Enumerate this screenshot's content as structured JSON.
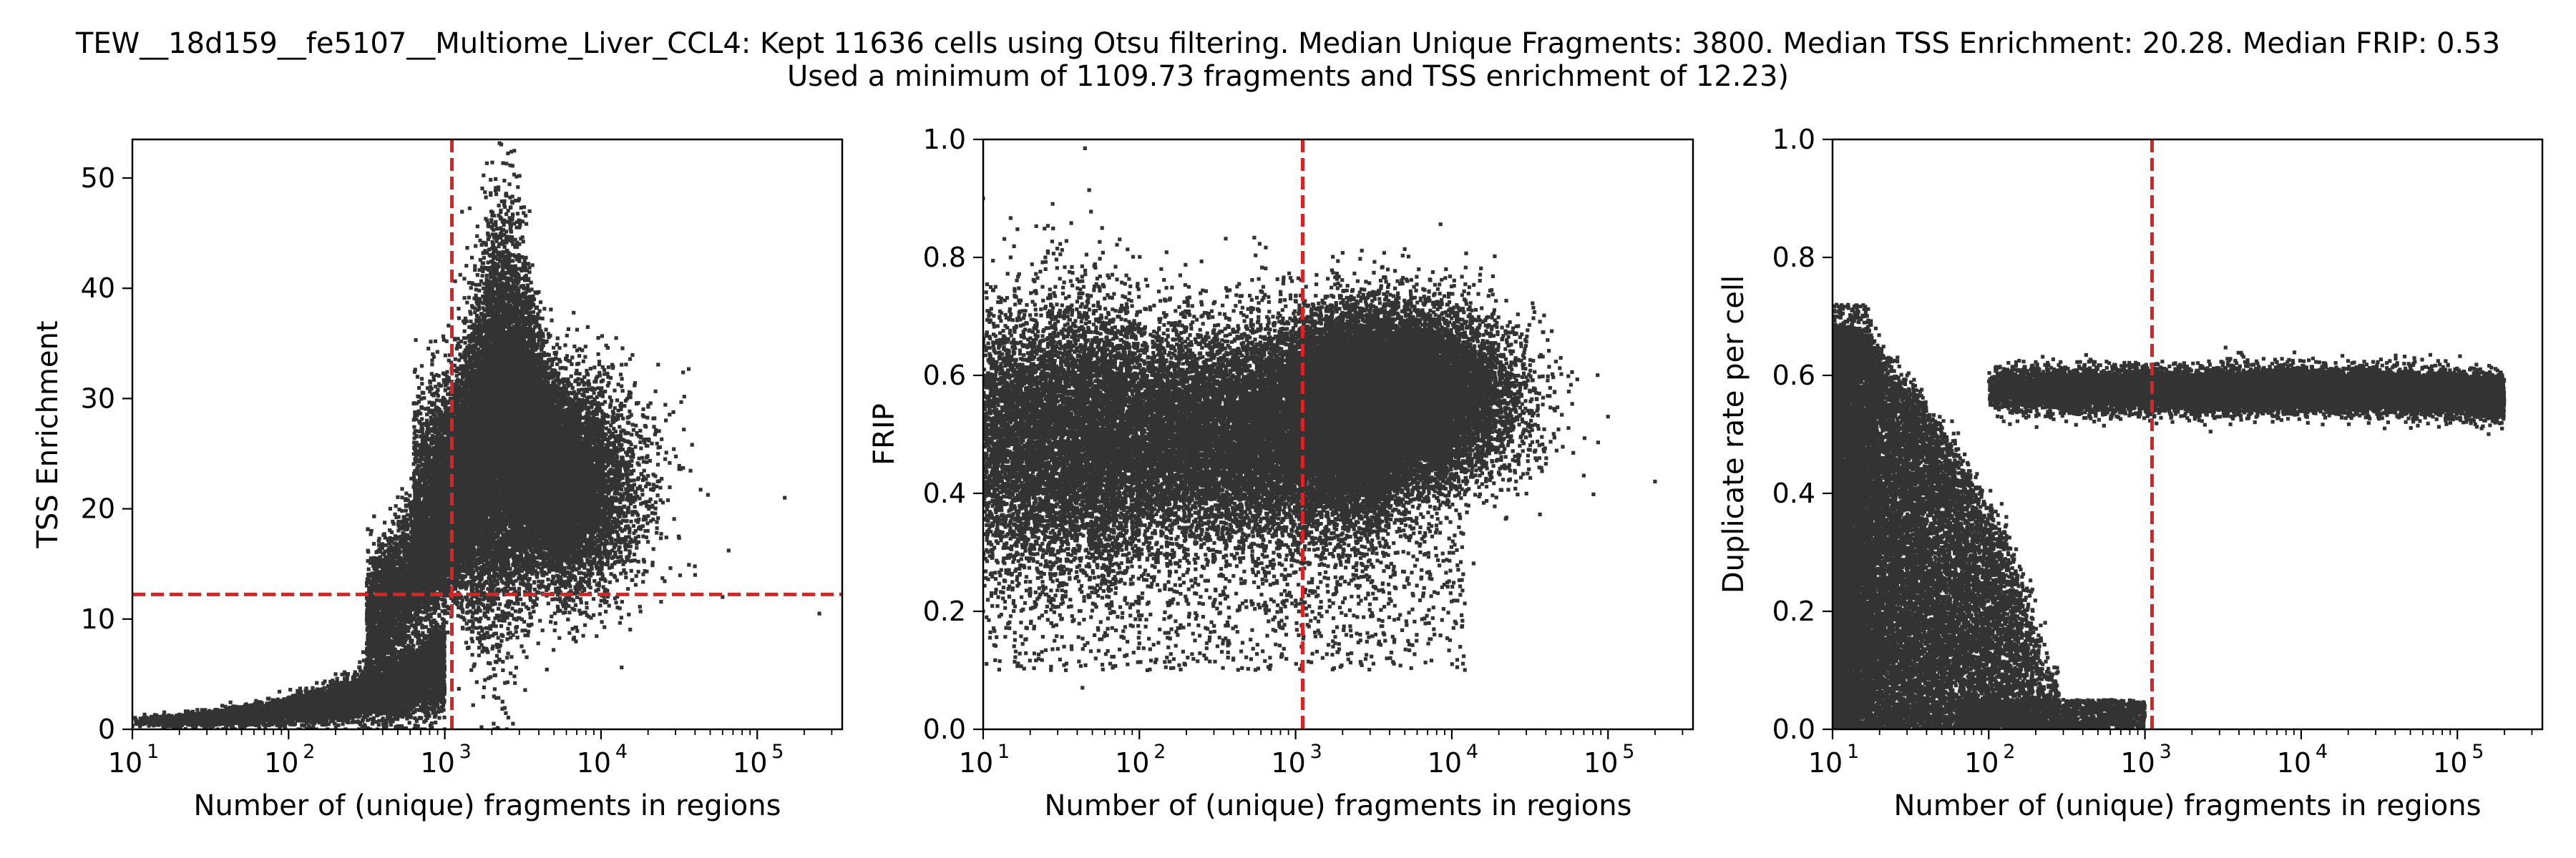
{
  "figure": {
    "title_line1": "TEW__18d159__fe5107__Multiome_Liver_CCL4: Kept 11636 cells using Otsu filtering. Median Unique Fragments: 3800. Median TSS Enrichment: 20.28. Median FRIP: 0.53",
    "title_line2": "Used a minimum of 1109.73 fragments and TSS enrichment of 12.23)"
  },
  "colors": {
    "points": "#333333",
    "threshold": "#dd2222",
    "axes": "#000000",
    "background": "#ffffff"
  },
  "chart_data": [
    {
      "type": "scatter",
      "title": "",
      "xlabel": "Number of (unique) fragments in regions",
      "ylabel": "TSS Enrichment",
      "xscale": "log",
      "xlim": [
        10,
        350000
      ],
      "ylim": [
        0,
        53.5
      ],
      "xticks": [
        10,
        100,
        1000,
        10000,
        100000
      ],
      "xtick_labels": [
        [
          "10",
          "1"
        ],
        [
          "10",
          "2"
        ],
        [
          "10",
          "3"
        ],
        [
          "10",
          "4"
        ],
        [
          "10",
          "5"
        ]
      ],
      "yticks": [
        0,
        10,
        20,
        30,
        40,
        50
      ],
      "ytick_labels": [
        "0",
        "10",
        "20",
        "30",
        "40",
        "50"
      ],
      "thresholds": {
        "vertical": 1109.73,
        "horizontal": 12.23
      },
      "grid": false,
      "points_approx": [
        [
          10,
          0.3
        ],
        [
          12,
          0.5
        ],
        [
          15,
          0.7
        ],
        [
          20,
          0.9
        ],
        [
          30,
          1.2
        ],
        [
          50,
          1.8
        ],
        [
          80,
          2.6
        ],
        [
          120,
          3.4
        ],
        [
          200,
          5.0
        ],
        [
          300,
          7.0
        ],
        [
          400,
          9.5
        ],
        [
          600,
          14
        ],
        [
          800,
          18
        ],
        [
          1000,
          21
        ],
        [
          1500,
          24
        ],
        [
          2000,
          27
        ],
        [
          2800,
          36
        ],
        [
          3000,
          44
        ],
        [
          3500,
          30
        ],
        [
          5000,
          25
        ],
        [
          8000,
          22
        ],
        [
          12000,
          20
        ],
        [
          20000,
          17
        ],
        [
          40000,
          14
        ],
        [
          60000,
          12
        ],
        [
          150000,
          21
        ],
        [
          250000,
          10.5
        ]
      ]
    },
    {
      "type": "scatter",
      "title": "",
      "xlabel": "Number of (unique) fragments in regions",
      "ylabel": "FRIP",
      "xscale": "log",
      "xlim": [
        10,
        350000
      ],
      "ylim": [
        0,
        1.0
      ],
      "xticks": [
        10,
        100,
        1000,
        10000,
        100000
      ],
      "xtick_labels": [
        [
          "10",
          "1"
        ],
        [
          "10",
          "2"
        ],
        [
          "10",
          "3"
        ],
        [
          "10",
          "4"
        ],
        [
          "10",
          "5"
        ]
      ],
      "yticks": [
        0,
        0.2,
        0.4,
        0.6,
        0.8,
        1.0
      ],
      "ytick_labels": [
        "0.0",
        "0.2",
        "0.4",
        "0.6",
        "0.8",
        "1.0"
      ],
      "thresholds": {
        "vertical": 1109.73
      },
      "grid": false,
      "points_approx": [
        [
          10,
          0.2
        ],
        [
          10,
          0.5
        ],
        [
          10,
          0.9
        ],
        [
          12,
          0.6
        ],
        [
          15,
          0.8
        ],
        [
          20,
          0.55
        ],
        [
          30,
          0.7
        ],
        [
          50,
          0.35
        ],
        [
          100,
          0.55
        ],
        [
          200,
          0.22
        ],
        [
          400,
          0.12
        ],
        [
          800,
          0.52
        ],
        [
          1000,
          0.6
        ],
        [
          2000,
          0.45
        ],
        [
          5000,
          0.55
        ],
        [
          10000,
          0.6
        ],
        [
          20000,
          0.5
        ],
        [
          40000,
          0.45
        ],
        [
          70000,
          0.43
        ],
        [
          100000,
          0.53
        ],
        [
          200000,
          0.42
        ]
      ]
    },
    {
      "type": "scatter",
      "title": "",
      "xlabel": "Number of (unique) fragments in regions",
      "ylabel": "Duplicate rate per cell",
      "xscale": "log",
      "xlim": [
        10,
        350000
      ],
      "ylim": [
        0,
        1.0
      ],
      "xticks": [
        10,
        100,
        1000,
        10000,
        100000
      ],
      "xtick_labels": [
        [
          "10",
          "1"
        ],
        [
          "10",
          "2"
        ],
        [
          "10",
          "3"
        ],
        [
          "10",
          "4"
        ],
        [
          "10",
          "5"
        ]
      ],
      "yticks": [
        0,
        0.2,
        0.4,
        0.6,
        0.8,
        1.0
      ],
      "ytick_labels": [
        "0.0",
        "0.2",
        "0.4",
        "0.6",
        "0.8",
        "1.0"
      ],
      "thresholds": {
        "vertical": 1109.73
      },
      "grid": false,
      "points_approx": [
        [
          10,
          0.02
        ],
        [
          10,
          0.3
        ],
        [
          10,
          0.7
        ],
        [
          15,
          0.65
        ],
        [
          30,
          0.6
        ],
        [
          60,
          0.45
        ],
        [
          100,
          0.3
        ],
        [
          150,
          0.25
        ],
        [
          200,
          0.15
        ],
        [
          300,
          0.05
        ],
        [
          700,
          0.01
        ],
        [
          1000,
          0.58
        ],
        [
          3000,
          0.6
        ],
        [
          10000,
          0.58
        ],
        [
          30000,
          0.58
        ],
        [
          60000,
          0.56
        ],
        [
          100000,
          0.57
        ],
        [
          180000,
          0.57
        ]
      ]
    }
  ]
}
